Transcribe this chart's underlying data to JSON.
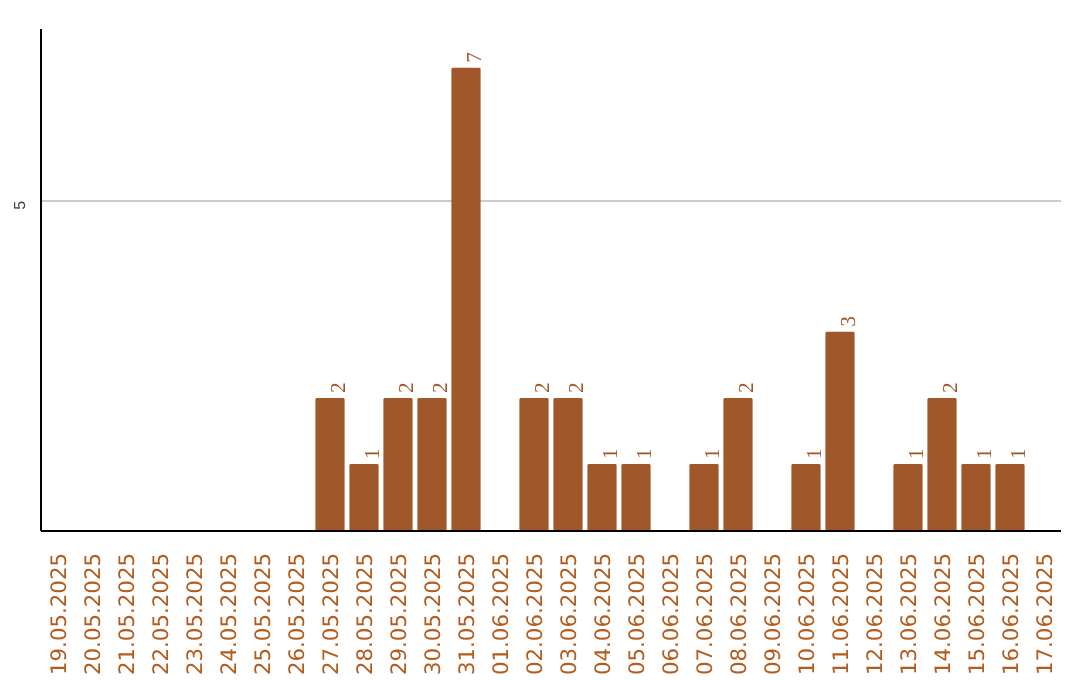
{
  "chart_data": {
    "type": "bar",
    "categories": [
      "19.05.2025",
      "20.05.2025",
      "21.05.2025",
      "22.05.2025",
      "23.05.2025",
      "24.05.2025",
      "25.05.2025",
      "26.05.2025",
      "27.05.2025",
      "28.05.2025",
      "29.05.2025",
      "30.05.2025",
      "31.05.2025",
      "01.06.2025",
      "02.06.2025",
      "03.06.2025",
      "04.06.2025",
      "05.06.2025",
      "06.06.2025",
      "07.06.2025",
      "08.06.2025",
      "09.06.2025",
      "10.06.2025",
      "11.06.2025",
      "12.06.2025",
      "13.06.2025",
      "14.06.2025",
      "15.06.2025",
      "16.06.2025",
      "17.06.2025"
    ],
    "values": [
      0,
      0,
      0,
      0,
      0,
      0,
      0,
      0,
      2,
      1,
      2,
      2,
      7,
      0,
      2,
      2,
      1,
      1,
      0,
      1,
      2,
      0,
      1,
      3,
      0,
      1,
      2,
      1,
      1,
      0
    ],
    "value_labels": [
      null,
      null,
      null,
      null,
      null,
      null,
      null,
      null,
      "2",
      "1",
      "2",
      "2",
      "7",
      null,
      "2",
      "2",
      "1",
      "1",
      null,
      "1",
      "2",
      null,
      "1",
      "3",
      null,
      "1",
      "2",
      "1",
      "1",
      null
    ],
    "color": "#a0582a",
    "ylim": [
      0,
      7.6
    ],
    "yticks": [
      5
    ],
    "grid": "y"
  }
}
